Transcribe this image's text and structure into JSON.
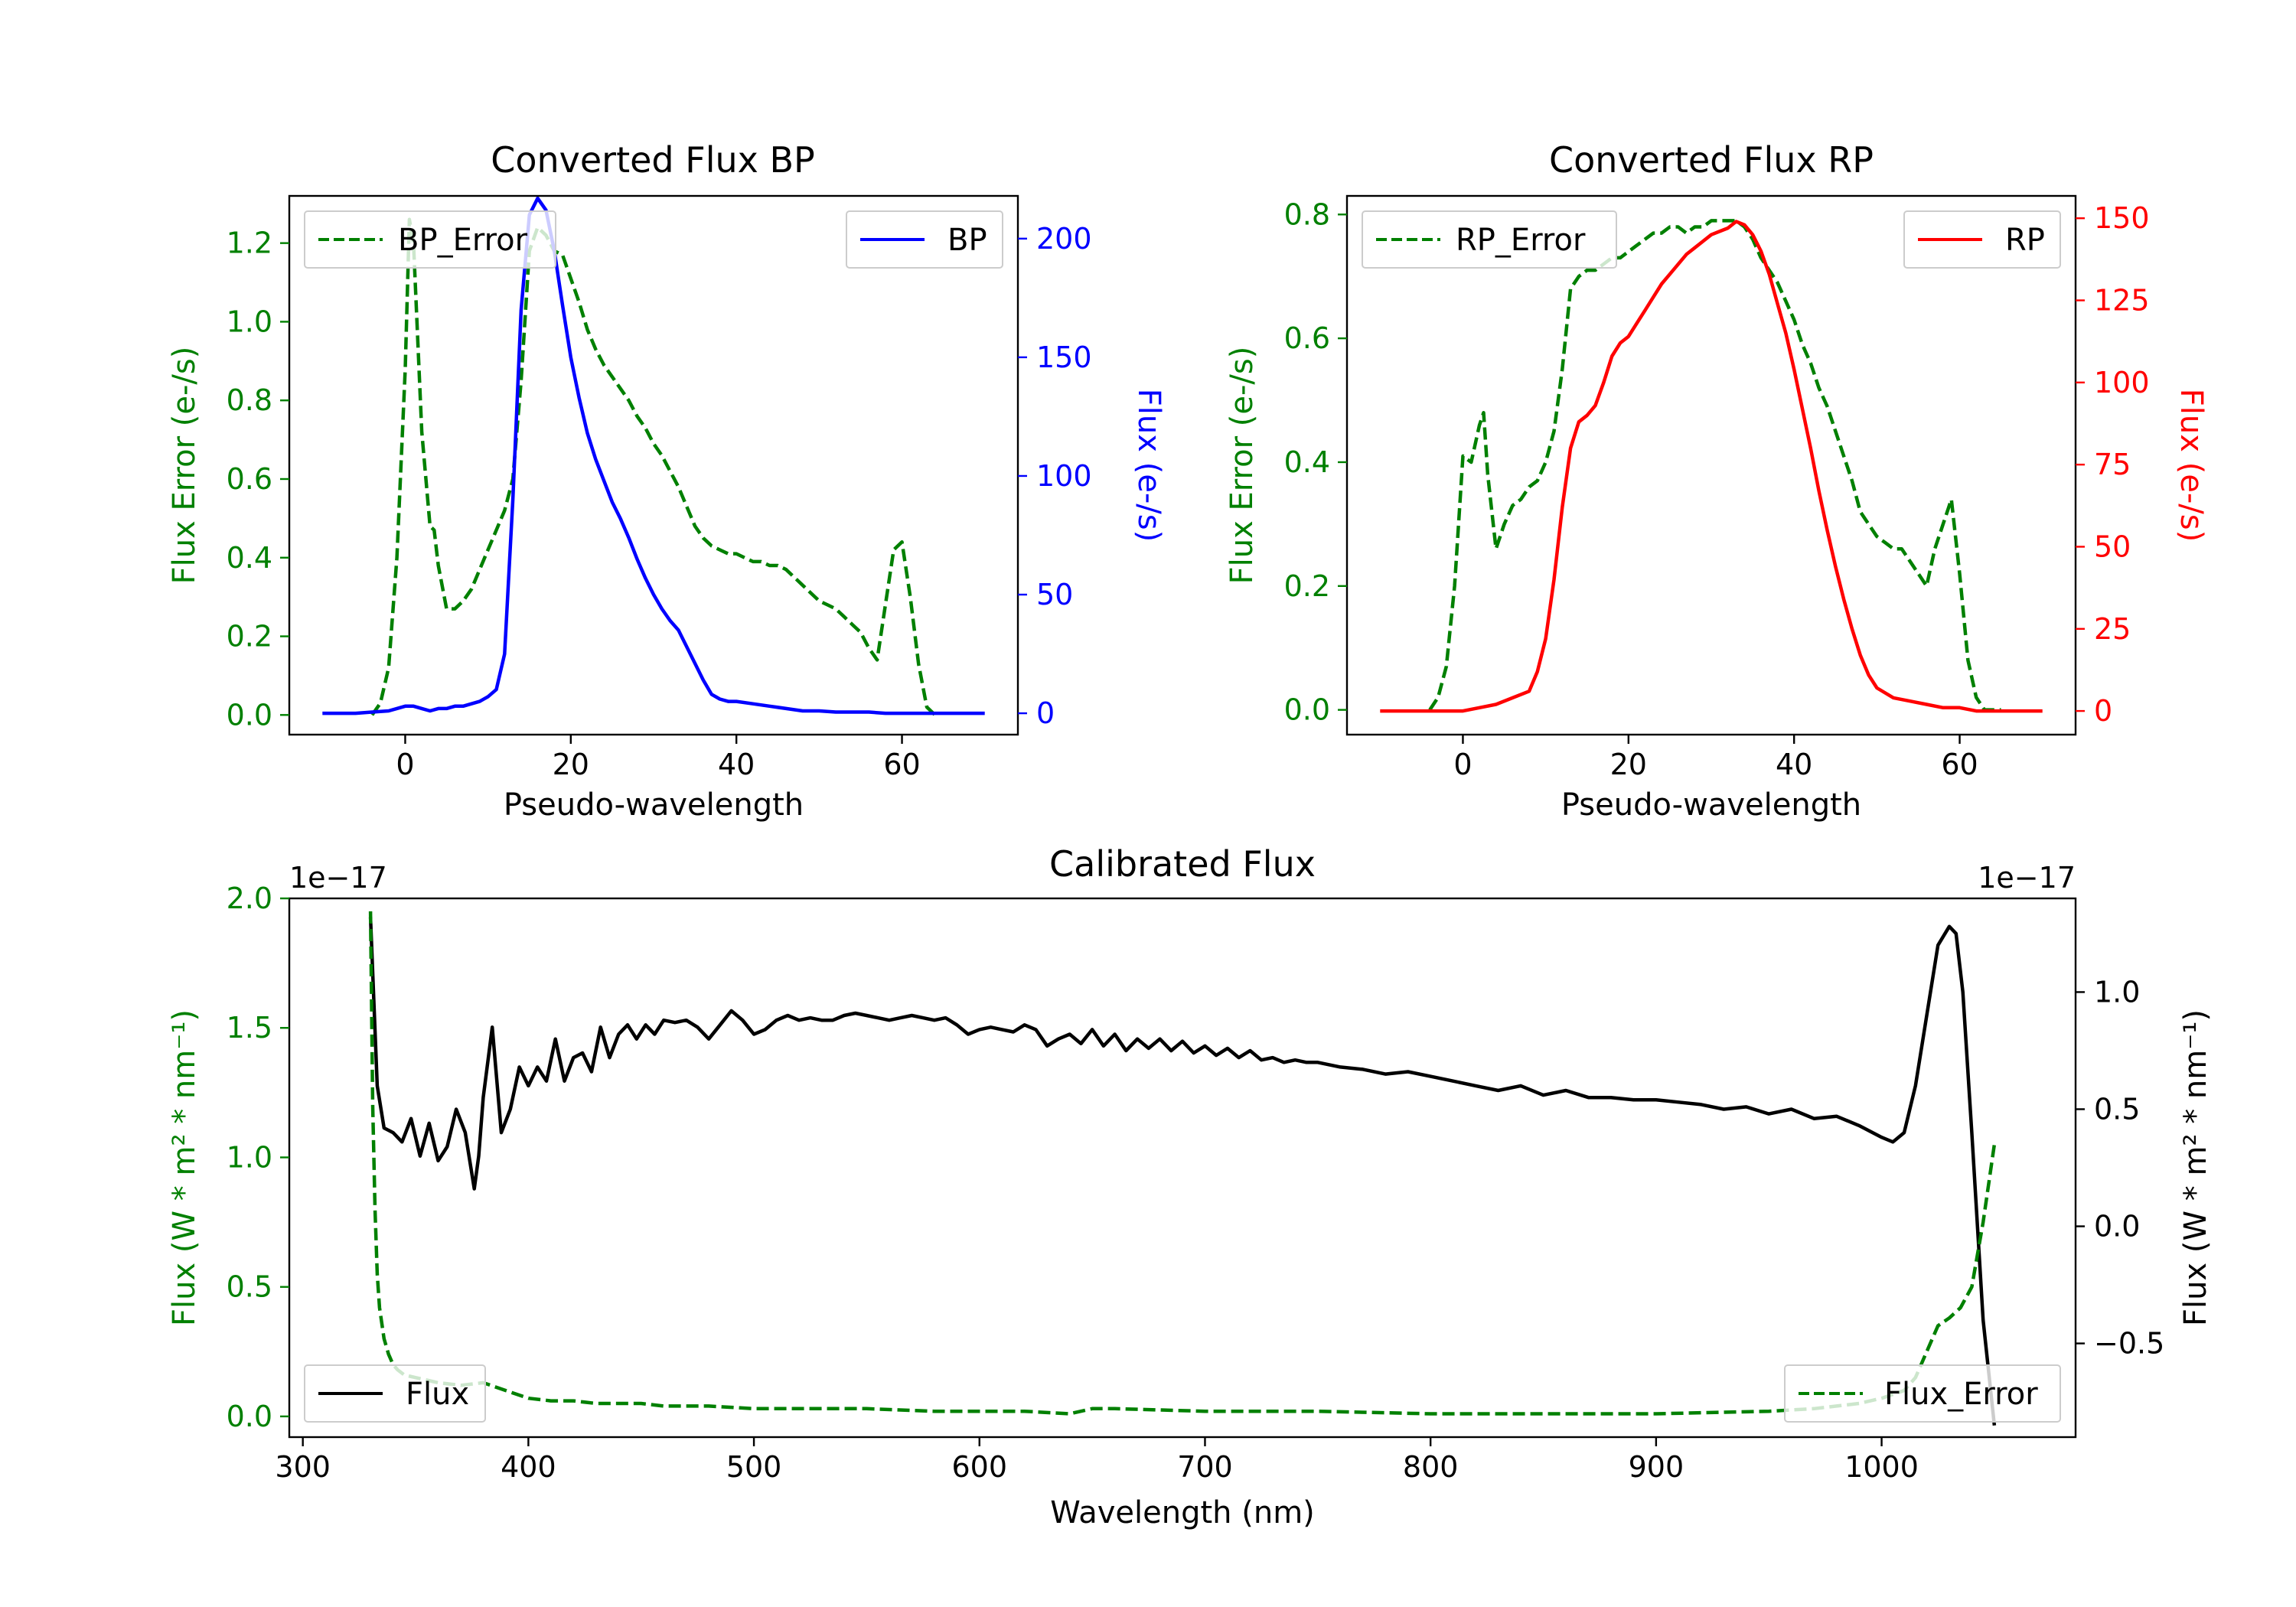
{
  "colors": {
    "green": "#008000",
    "blue": "#0000ff",
    "red": "#ff0000",
    "black": "#000000"
  },
  "chart_data": [
    {
      "type": "line",
      "title": "Converted Flux BP",
      "xlabel": "Pseudo-wavelength",
      "xlim": [
        -14,
        74
      ],
      "xticks": [
        0,
        20,
        40,
        60
      ],
      "xtick_labels": [
        "0",
        "20",
        "40",
        "60"
      ],
      "left_axis": {
        "label": "Flux Error (e-/s)",
        "color": "green",
        "ylim": [
          -0.05,
          1.32
        ],
        "ticks": [
          0.0,
          0.2,
          0.4,
          0.6,
          0.8,
          1.0,
          1.2
        ],
        "tick_labels": [
          "0.0",
          "0.2",
          "0.4",
          "0.6",
          "0.8",
          "1.0",
          "1.2"
        ]
      },
      "right_axis": {
        "label": "Flux (e-/s)",
        "color": "blue",
        "ylim": [
          -9,
          218
        ],
        "ticks": [
          0,
          50,
          100,
          150,
          200
        ],
        "tick_labels": [
          "0",
          "50",
          "100",
          "150",
          "200"
        ]
      },
      "legend_left": "BP_Error",
      "legend_right": "BP",
      "series": [
        {
          "name": "BP_Error",
          "axis": "left",
          "color": "green",
          "style": "dashed",
          "x": [
            -4,
            -3,
            -2,
            -1,
            0,
            0.5,
            1,
            2,
            3,
            3.5,
            4,
            5,
            6,
            7,
            8,
            9,
            10,
            11,
            12,
            13,
            14,
            15,
            16,
            17,
            18,
            19,
            20,
            21,
            22,
            23,
            24,
            25,
            26,
            27,
            28,
            29,
            30,
            31,
            32,
            33,
            34,
            35,
            36,
            37,
            38,
            39,
            40,
            41,
            42,
            43,
            44,
            45,
            46,
            47,
            48,
            49,
            50,
            51,
            52,
            53,
            54,
            55,
            56,
            57,
            58,
            59,
            60,
            61,
            62,
            63,
            64
          ],
          "y": [
            0.0,
            0.03,
            0.12,
            0.4,
            0.88,
            1.26,
            1.2,
            0.72,
            0.48,
            0.47,
            0.38,
            0.27,
            0.27,
            0.29,
            0.32,
            0.37,
            0.42,
            0.47,
            0.52,
            0.6,
            0.85,
            1.18,
            1.24,
            1.22,
            1.18,
            1.17,
            1.11,
            1.05,
            0.98,
            0.93,
            0.89,
            0.86,
            0.83,
            0.8,
            0.76,
            0.73,
            0.69,
            0.66,
            0.62,
            0.58,
            0.53,
            0.48,
            0.45,
            0.43,
            0.42,
            0.41,
            0.41,
            0.4,
            0.39,
            0.39,
            0.38,
            0.38,
            0.37,
            0.35,
            0.33,
            0.31,
            0.29,
            0.28,
            0.27,
            0.25,
            0.23,
            0.21,
            0.17,
            0.14,
            0.28,
            0.42,
            0.44,
            0.3,
            0.13,
            0.02,
            0.0
          ]
        },
        {
          "name": "BP",
          "axis": "right",
          "color": "blue",
          "style": "solid",
          "x": [
            -10,
            -8,
            -6,
            -4,
            -2,
            -1,
            0,
            1,
            2,
            3,
            4,
            5,
            6,
            7,
            8,
            9,
            10,
            11,
            12,
            13,
            14,
            15,
            16,
            17,
            18,
            19,
            20,
            21,
            22,
            23,
            24,
            25,
            26,
            27,
            28,
            29,
            30,
            31,
            32,
            33,
            34,
            35,
            36,
            37,
            38,
            39,
            40,
            42,
            44,
            46,
            48,
            50,
            52,
            54,
            56,
            58,
            60,
            62,
            64,
            66,
            68,
            70
          ],
          "y": [
            0,
            0,
            0,
            0.5,
            1,
            2,
            3,
            3,
            2,
            1,
            2,
            2,
            3,
            3,
            4,
            5,
            7,
            10,
            25,
            90,
            170,
            210,
            217,
            212,
            195,
            172,
            150,
            133,
            118,
            107,
            98,
            89,
            82,
            74,
            65,
            57,
            50,
            44,
            39,
            35,
            28,
            21,
            14,
            8,
            6,
            5,
            5,
            4,
            3,
            2,
            1,
            1,
            0.5,
            0.5,
            0.5,
            0,
            0,
            0,
            0,
            0,
            0,
            0
          ]
        }
      ]
    },
    {
      "type": "line",
      "title": "Converted Flux RP",
      "xlabel": "Pseudo-wavelength",
      "xlim": [
        -14,
        74
      ],
      "xticks": [
        0,
        20,
        40,
        60
      ],
      "xtick_labels": [
        "0",
        "20",
        "40",
        "60"
      ],
      "left_axis": {
        "label": "Flux Error (e-/s)",
        "color": "green",
        "ylim": [
          -0.04,
          0.83
        ],
        "ticks": [
          0.0,
          0.2,
          0.4,
          0.6,
          0.8
        ],
        "tick_labels": [
          "0.0",
          "0.2",
          "0.4",
          "0.6",
          "0.8"
        ]
      },
      "right_axis": {
        "label": "Flux (e-/s)",
        "color": "red",
        "ylim": [
          -7.2,
          156.8
        ],
        "ticks": [
          0,
          25,
          50,
          75,
          100,
          125,
          150
        ],
        "tick_labels": [
          "0",
          "25",
          "50",
          "75",
          "100",
          "125",
          "150"
        ]
      },
      "legend_left": "RP_Error",
      "legend_right": "RP",
      "series": [
        {
          "name": "RP_Error",
          "axis": "left",
          "color": "green",
          "style": "dashed",
          "x": [
            -4,
            -3,
            -2,
            -1,
            0,
            1,
            2,
            2.5,
            3,
            4,
            5,
            6,
            7,
            8,
            9,
            10,
            11,
            12,
            13,
            14,
            15,
            16,
            17,
            18,
            19,
            20,
            21,
            22,
            23,
            24,
            25,
            26,
            27,
            28,
            29,
            30,
            31,
            32,
            33,
            34,
            35,
            36,
            37,
            38,
            39,
            40,
            41,
            42,
            43,
            44,
            45,
            46,
            47,
            48,
            49,
            50,
            51,
            52,
            53,
            54,
            55,
            56,
            57,
            58,
            59,
            60,
            61,
            62,
            63,
            64,
            65
          ],
          "y": [
            0.0,
            0.02,
            0.07,
            0.2,
            0.41,
            0.4,
            0.46,
            0.48,
            0.38,
            0.26,
            0.3,
            0.33,
            0.34,
            0.36,
            0.37,
            0.4,
            0.45,
            0.55,
            0.68,
            0.7,
            0.71,
            0.71,
            0.72,
            0.73,
            0.73,
            0.74,
            0.75,
            0.76,
            0.77,
            0.77,
            0.78,
            0.78,
            0.77,
            0.78,
            0.78,
            0.79,
            0.79,
            0.79,
            0.79,
            0.78,
            0.76,
            0.73,
            0.71,
            0.69,
            0.66,
            0.63,
            0.59,
            0.56,
            0.52,
            0.49,
            0.45,
            0.41,
            0.37,
            0.32,
            0.3,
            0.28,
            0.27,
            0.26,
            0.26,
            0.24,
            0.22,
            0.2,
            0.26,
            0.3,
            0.34,
            0.22,
            0.08,
            0.02,
            0.0,
            0.0,
            0.0
          ]
        },
        {
          "name": "RP",
          "axis": "right",
          "color": "red",
          "style": "solid",
          "x": [
            -10,
            -5,
            0,
            2,
            4,
            6,
            8,
            9,
            10,
            11,
            12,
            13,
            14,
            15,
            16,
            17,
            18,
            19,
            20,
            21,
            22,
            23,
            24,
            25,
            26,
            27,
            28,
            29,
            30,
            31,
            32,
            33,
            34,
            35,
            36,
            37,
            38,
            39,
            40,
            41,
            42,
            43,
            44,
            45,
            46,
            47,
            48,
            49,
            50,
            52,
            54,
            56,
            58,
            60,
            62,
            65,
            70
          ],
          "y": [
            0,
            0,
            0,
            1,
            2,
            4,
            6,
            12,
            22,
            40,
            62,
            80,
            88,
            90,
            93,
            100,
            108,
            112,
            114,
            118,
            122,
            126,
            130,
            133,
            136,
            139,
            141,
            143,
            145,
            146,
            147,
            149,
            148,
            145,
            140,
            133,
            124,
            115,
            104,
            92,
            80,
            67,
            55,
            44,
            34,
            25,
            17,
            11,
            7,
            4,
            3,
            2,
            1,
            1,
            0,
            0,
            0
          ]
        }
      ]
    },
    {
      "type": "line",
      "title": "Calibrated Flux",
      "xlabel": "Wavelength (nm)",
      "xlim": [
        294,
        1086
      ],
      "xticks": [
        300,
        400,
        500,
        600,
        700,
        800,
        900,
        1000
      ],
      "xtick_labels": [
        "300",
        "400",
        "500",
        "600",
        "700",
        "800",
        "900",
        "1000"
      ],
      "left_axis": {
        "label": "Flux (W * m² * nm⁻¹)",
        "color": "green",
        "ylim": [
          -0.08,
          2.0
        ],
        "ticks": [
          0.0,
          0.5,
          1.0,
          1.5,
          2.0
        ],
        "tick_labels": [
          "0.0",
          "0.5",
          "1.0",
          "1.5",
          "2.0"
        ],
        "offset_text": "1e−17"
      },
      "right_axis": {
        "label": "Flux (W * m² * nm⁻¹)",
        "color": "black",
        "ylim": [
          -0.9,
          1.4
        ],
        "ticks": [
          -0.5,
          0.0,
          0.5,
          1.0
        ],
        "tick_labels": [
          "−0.5",
          "0.0",
          "0.5",
          "1.0"
        ],
        "offset_text": "1e−17"
      },
      "legend_left": "Flux",
      "legend_right": "Flux_Error",
      "series": [
        {
          "name": "Flux",
          "axis": "right",
          "color": "black",
          "style": "solid",
          "x": [
            330,
            333,
            336,
            340,
            344,
            348,
            352,
            356,
            360,
            364,
            368,
            372,
            376,
            378,
            380,
            384,
            388,
            392,
            396,
            400,
            404,
            408,
            412,
            416,
            420,
            424,
            428,
            432,
            436,
            440,
            444,
            448,
            452,
            456,
            460,
            465,
            470,
            475,
            480,
            485,
            490,
            495,
            500,
            505,
            510,
            515,
            520,
            525,
            530,
            535,
            540,
            545,
            550,
            555,
            560,
            565,
            570,
            575,
            580,
            585,
            590,
            595,
            600,
            605,
            610,
            615,
            620,
            625,
            630,
            635,
            640,
            645,
            650,
            655,
            660,
            665,
            670,
            675,
            680,
            685,
            690,
            695,
            700,
            705,
            710,
            715,
            720,
            725,
            730,
            735,
            740,
            745,
            750,
            760,
            770,
            780,
            790,
            800,
            810,
            820,
            830,
            840,
            850,
            860,
            870,
            880,
            890,
            900,
            910,
            920,
            930,
            940,
            950,
            960,
            970,
            980,
            990,
            1000,
            1005,
            1010,
            1015,
            1020,
            1025,
            1030,
            1033,
            1036,
            1040,
            1045,
            1050
          ],
          "y": [
            1.32,
            0.6,
            0.42,
            0.4,
            0.36,
            0.46,
            0.3,
            0.44,
            0.28,
            0.34,
            0.5,
            0.4,
            0.16,
            0.3,
            0.55,
            0.85,
            0.4,
            0.5,
            0.68,
            0.6,
            0.68,
            0.62,
            0.8,
            0.62,
            0.72,
            0.74,
            0.66,
            0.85,
            0.72,
            0.82,
            0.86,
            0.8,
            0.86,
            0.82,
            0.88,
            0.87,
            0.88,
            0.85,
            0.8,
            0.86,
            0.92,
            0.88,
            0.82,
            0.84,
            0.88,
            0.9,
            0.88,
            0.89,
            0.88,
            0.88,
            0.9,
            0.91,
            0.9,
            0.89,
            0.88,
            0.89,
            0.9,
            0.89,
            0.88,
            0.89,
            0.86,
            0.82,
            0.84,
            0.85,
            0.84,
            0.83,
            0.86,
            0.84,
            0.77,
            0.8,
            0.82,
            0.78,
            0.84,
            0.77,
            0.82,
            0.75,
            0.8,
            0.76,
            0.8,
            0.75,
            0.79,
            0.74,
            0.77,
            0.73,
            0.76,
            0.72,
            0.75,
            0.71,
            0.72,
            0.7,
            0.71,
            0.7,
            0.7,
            0.68,
            0.67,
            0.65,
            0.66,
            0.64,
            0.62,
            0.6,
            0.58,
            0.6,
            0.56,
            0.58,
            0.55,
            0.55,
            0.54,
            0.54,
            0.53,
            0.52,
            0.5,
            0.51,
            0.48,
            0.5,
            0.46,
            0.47,
            0.43,
            0.38,
            0.36,
            0.4,
            0.6,
            0.9,
            1.2,
            1.28,
            1.25,
            1.0,
            0.4,
            -0.4,
            -0.85
          ]
        },
        {
          "name": "Flux_Error",
          "axis": "left",
          "color": "green",
          "style": "dashed",
          "x": [
            330,
            331,
            332,
            333,
            334,
            336,
            338,
            340,
            342,
            345,
            350,
            360,
            370,
            380,
            390,
            400,
            410,
            420,
            430,
            440,
            450,
            460,
            480,
            500,
            520,
            550,
            580,
            600,
            620,
            640,
            650,
            660,
            700,
            750,
            800,
            850,
            900,
            950,
            970,
            990,
            1000,
            1010,
            1015,
            1020,
            1025,
            1030,
            1035,
            1040,
            1045,
            1050
          ],
          "y": [
            1.95,
            1.2,
            0.8,
            0.55,
            0.42,
            0.3,
            0.24,
            0.2,
            0.18,
            0.16,
            0.15,
            0.13,
            0.12,
            0.13,
            0.1,
            0.07,
            0.06,
            0.06,
            0.05,
            0.05,
            0.05,
            0.04,
            0.04,
            0.03,
            0.03,
            0.03,
            0.02,
            0.02,
            0.02,
            0.01,
            0.03,
            0.03,
            0.02,
            0.02,
            0.01,
            0.01,
            0.01,
            0.02,
            0.03,
            0.05,
            0.07,
            0.1,
            0.15,
            0.25,
            0.35,
            0.38,
            0.42,
            0.5,
            0.75,
            1.05
          ]
        }
      ]
    }
  ]
}
